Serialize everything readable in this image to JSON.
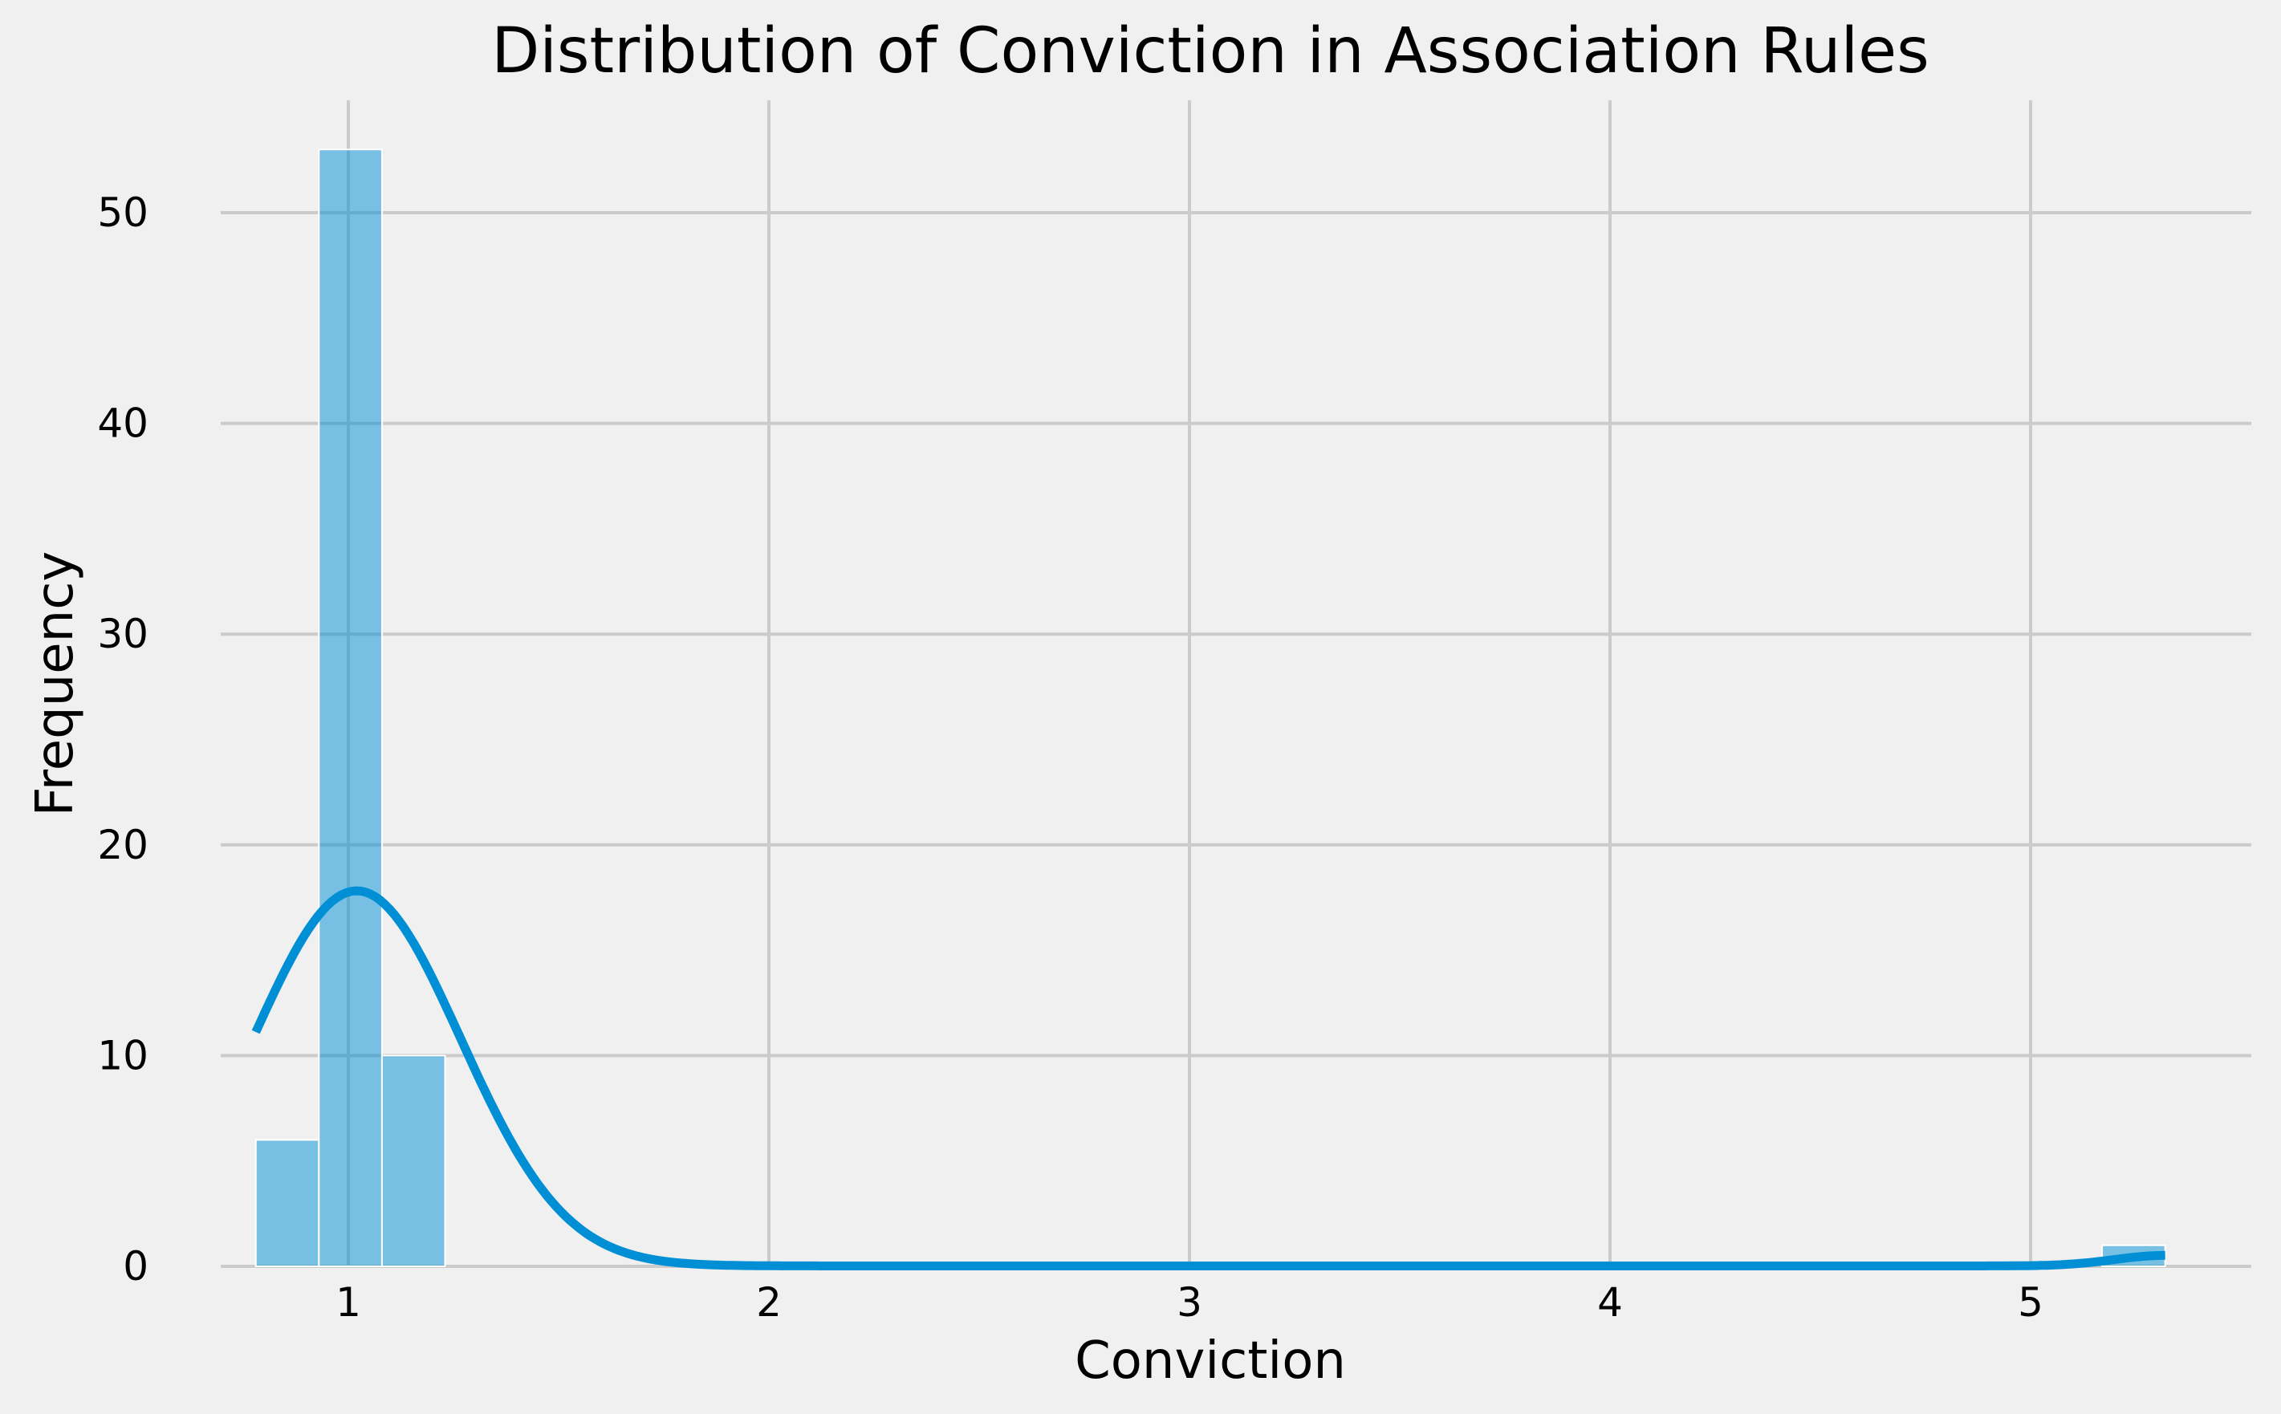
{
  "chart_data": {
    "type": "bar",
    "subtype": "histogram-with-kde",
    "title": "Distribution of Conviction in Association Rules",
    "xlabel": "Conviction",
    "ylabel": "Frequency",
    "xlim": [
      0.7,
      5.4
    ],
    "ylim": [
      0,
      55
    ],
    "xticks": [
      1,
      2,
      3,
      4,
      5
    ],
    "yticks": [
      0,
      10,
      20,
      30,
      40,
      50
    ],
    "grid": true,
    "legend": "none",
    "colors": {
      "bar": "#008fd5",
      "kde": "#008fd5",
      "background": "#f0f0f0",
      "grid": "#cbcbcb"
    },
    "bins": [
      {
        "start": 0.78,
        "end": 0.93,
        "count": 6
      },
      {
        "start": 0.93,
        "end": 1.08,
        "count": 53
      },
      {
        "start": 1.08,
        "end": 1.23,
        "count": 10
      },
      {
        "start": 5.17,
        "end": 5.32,
        "count": 1
      }
    ],
    "kde": {
      "x_range": [
        0.78,
        5.32
      ],
      "peak_x": 1.02,
      "peak_y": 17.8,
      "start_y": 11.1,
      "end_y": 0.5
    }
  }
}
